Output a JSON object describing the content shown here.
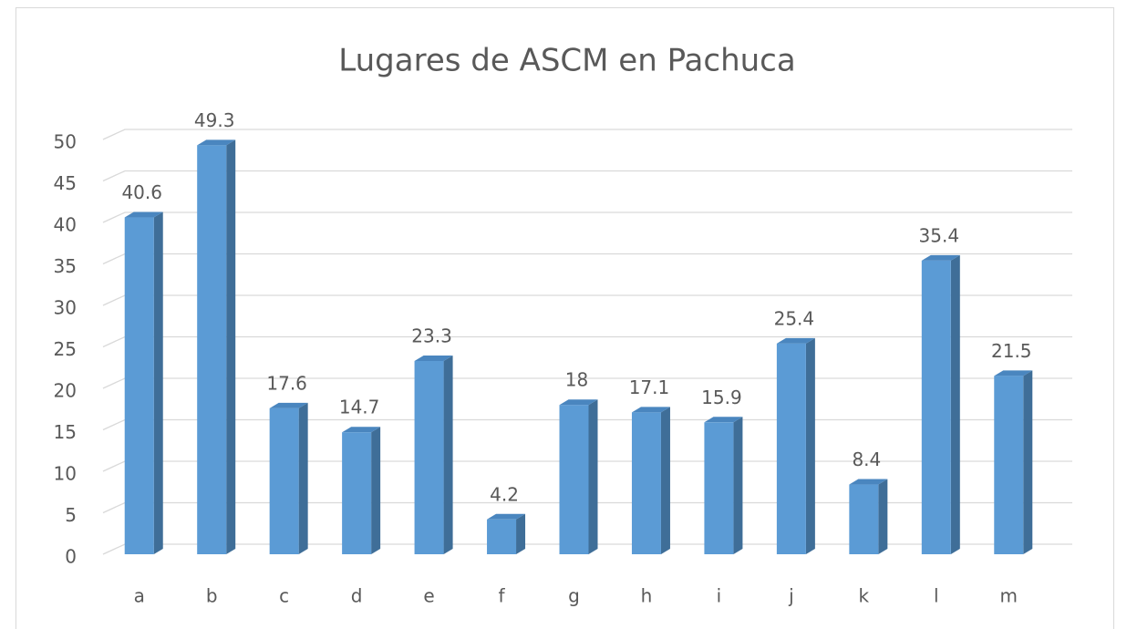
{
  "chart_data": {
    "type": "bar",
    "title": "Lugares de ASCM en Pachuca",
    "categories": [
      "a",
      "b",
      "c",
      "d",
      "e",
      "f",
      "g",
      "h",
      "i",
      "j",
      "k",
      "l",
      "m"
    ],
    "values": [
      40.6,
      49.3,
      17.6,
      14.7,
      23.3,
      4.2,
      18,
      17.1,
      15.9,
      25.4,
      8.4,
      35.4,
      21.5
    ],
    "color": "#5b9bd5",
    "ylim": [
      0,
      50
    ],
    "yticks": [
      0,
      5,
      10,
      15,
      20,
      25,
      30,
      35,
      40,
      45,
      50
    ],
    "grid": true
  }
}
